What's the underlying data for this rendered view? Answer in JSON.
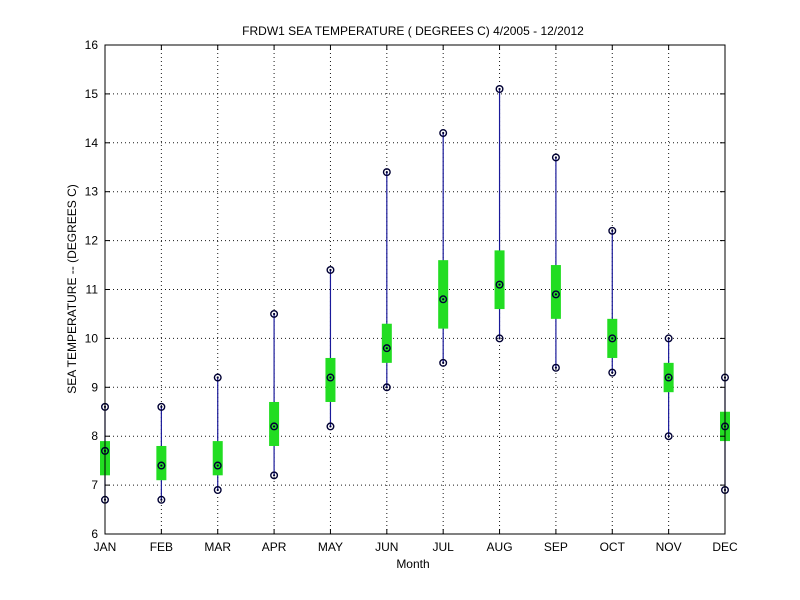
{
  "chart_data": {
    "type": "box",
    "title": "FRDW1  SEA TEMPERATURE ( DEGREES C) 4/2005 - 12/2012",
    "xlabel": "Month",
    "ylabel": "SEA TEMPERATURE -- (DEGREES C)",
    "ylim": [
      6,
      16
    ],
    "yticks": [
      "6",
      "7",
      "8",
      "9",
      "10",
      "11",
      "12",
      "13",
      "14",
      "15",
      "16"
    ],
    "grid": true,
    "categories": [
      "JAN",
      "FEB",
      "MAR",
      "APR",
      "MAY",
      "JUN",
      "JUL",
      "AUG",
      "SEP",
      "OCT",
      "NOV",
      "DEC"
    ],
    "min": [
      6.7,
      6.7,
      6.9,
      7.2,
      8.2,
      9.0,
      9.5,
      10.0,
      9.4,
      9.3,
      8.0,
      6.9
    ],
    "q1": [
      7.2,
      7.1,
      7.2,
      7.8,
      8.7,
      9.5,
      10.2,
      10.6,
      10.4,
      9.6,
      8.9,
      7.9
    ],
    "median": [
      7.7,
      7.4,
      7.4,
      8.2,
      9.2,
      9.8,
      10.8,
      11.1,
      10.9,
      10.0,
      9.2,
      8.2
    ],
    "q3": [
      7.9,
      7.8,
      7.9,
      8.7,
      9.6,
      10.3,
      11.6,
      11.8,
      11.5,
      10.4,
      9.5,
      8.5
    ],
    "max": [
      8.6,
      8.6,
      9.2,
      10.5,
      11.4,
      13.4,
      14.2,
      15.1,
      13.7,
      12.2,
      10.0,
      9.2
    ],
    "colors": {
      "whisker": "#1a1a9a",
      "box": "#22dd22",
      "marker": "#000033"
    }
  }
}
